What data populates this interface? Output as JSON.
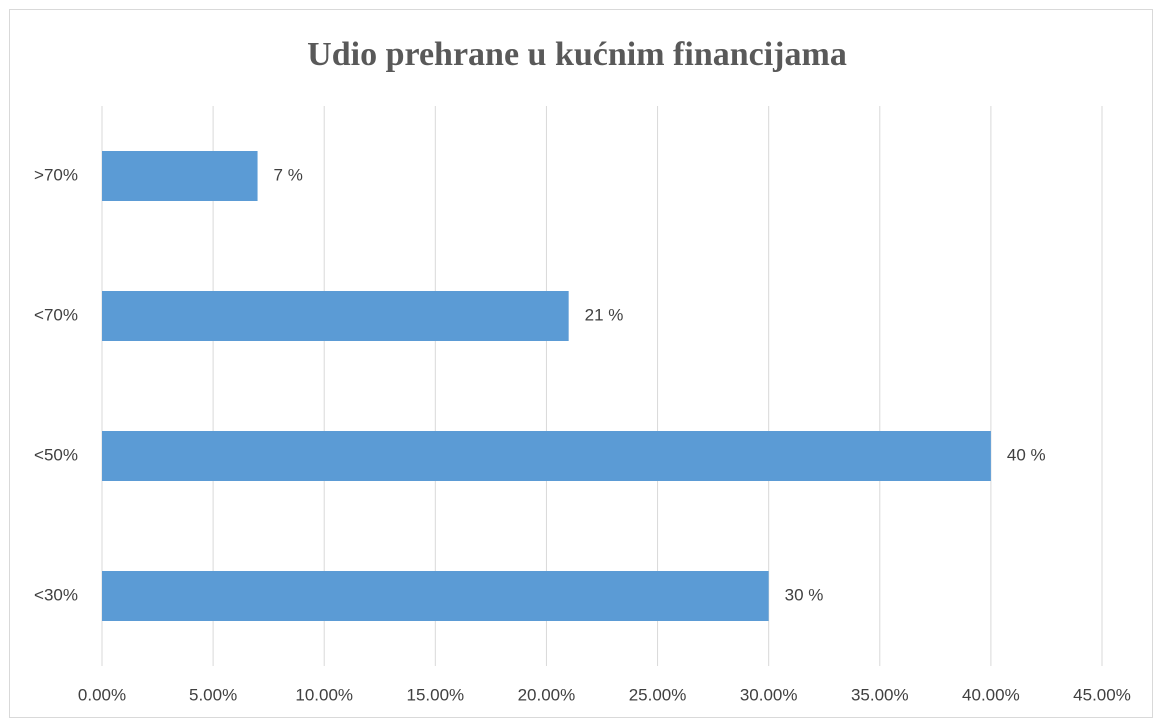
{
  "chart_data": {
    "type": "bar",
    "orientation": "horizontal",
    "title": "Udio prehrane u kućnim financijama",
    "categories": [
      ">70%",
      "<70%",
      "<50%",
      "<30%"
    ],
    "values": [
      7,
      21,
      40,
      30
    ],
    "value_labels": [
      "7 %",
      "21 %",
      "40 %",
      "30 %"
    ],
    "color": "#5b9bd5",
    "xlim": [
      0,
      45
    ],
    "xticks": [
      {
        "value": 0,
        "label": "0.00%"
      },
      {
        "value": 5,
        "label": "5.00%"
      },
      {
        "value": 10,
        "label": "10.00%"
      },
      {
        "value": 15,
        "label": "15.00%"
      },
      {
        "value": 20,
        "label": "20.00%"
      },
      {
        "value": 25,
        "label": "25.00%"
      },
      {
        "value": 30,
        "label": "30.00%"
      },
      {
        "value": 35,
        "label": "35.00%"
      },
      {
        "value": 40,
        "label": "40.00%"
      },
      {
        "value": 45,
        "label": "45.00%"
      }
    ],
    "grid": true
  }
}
